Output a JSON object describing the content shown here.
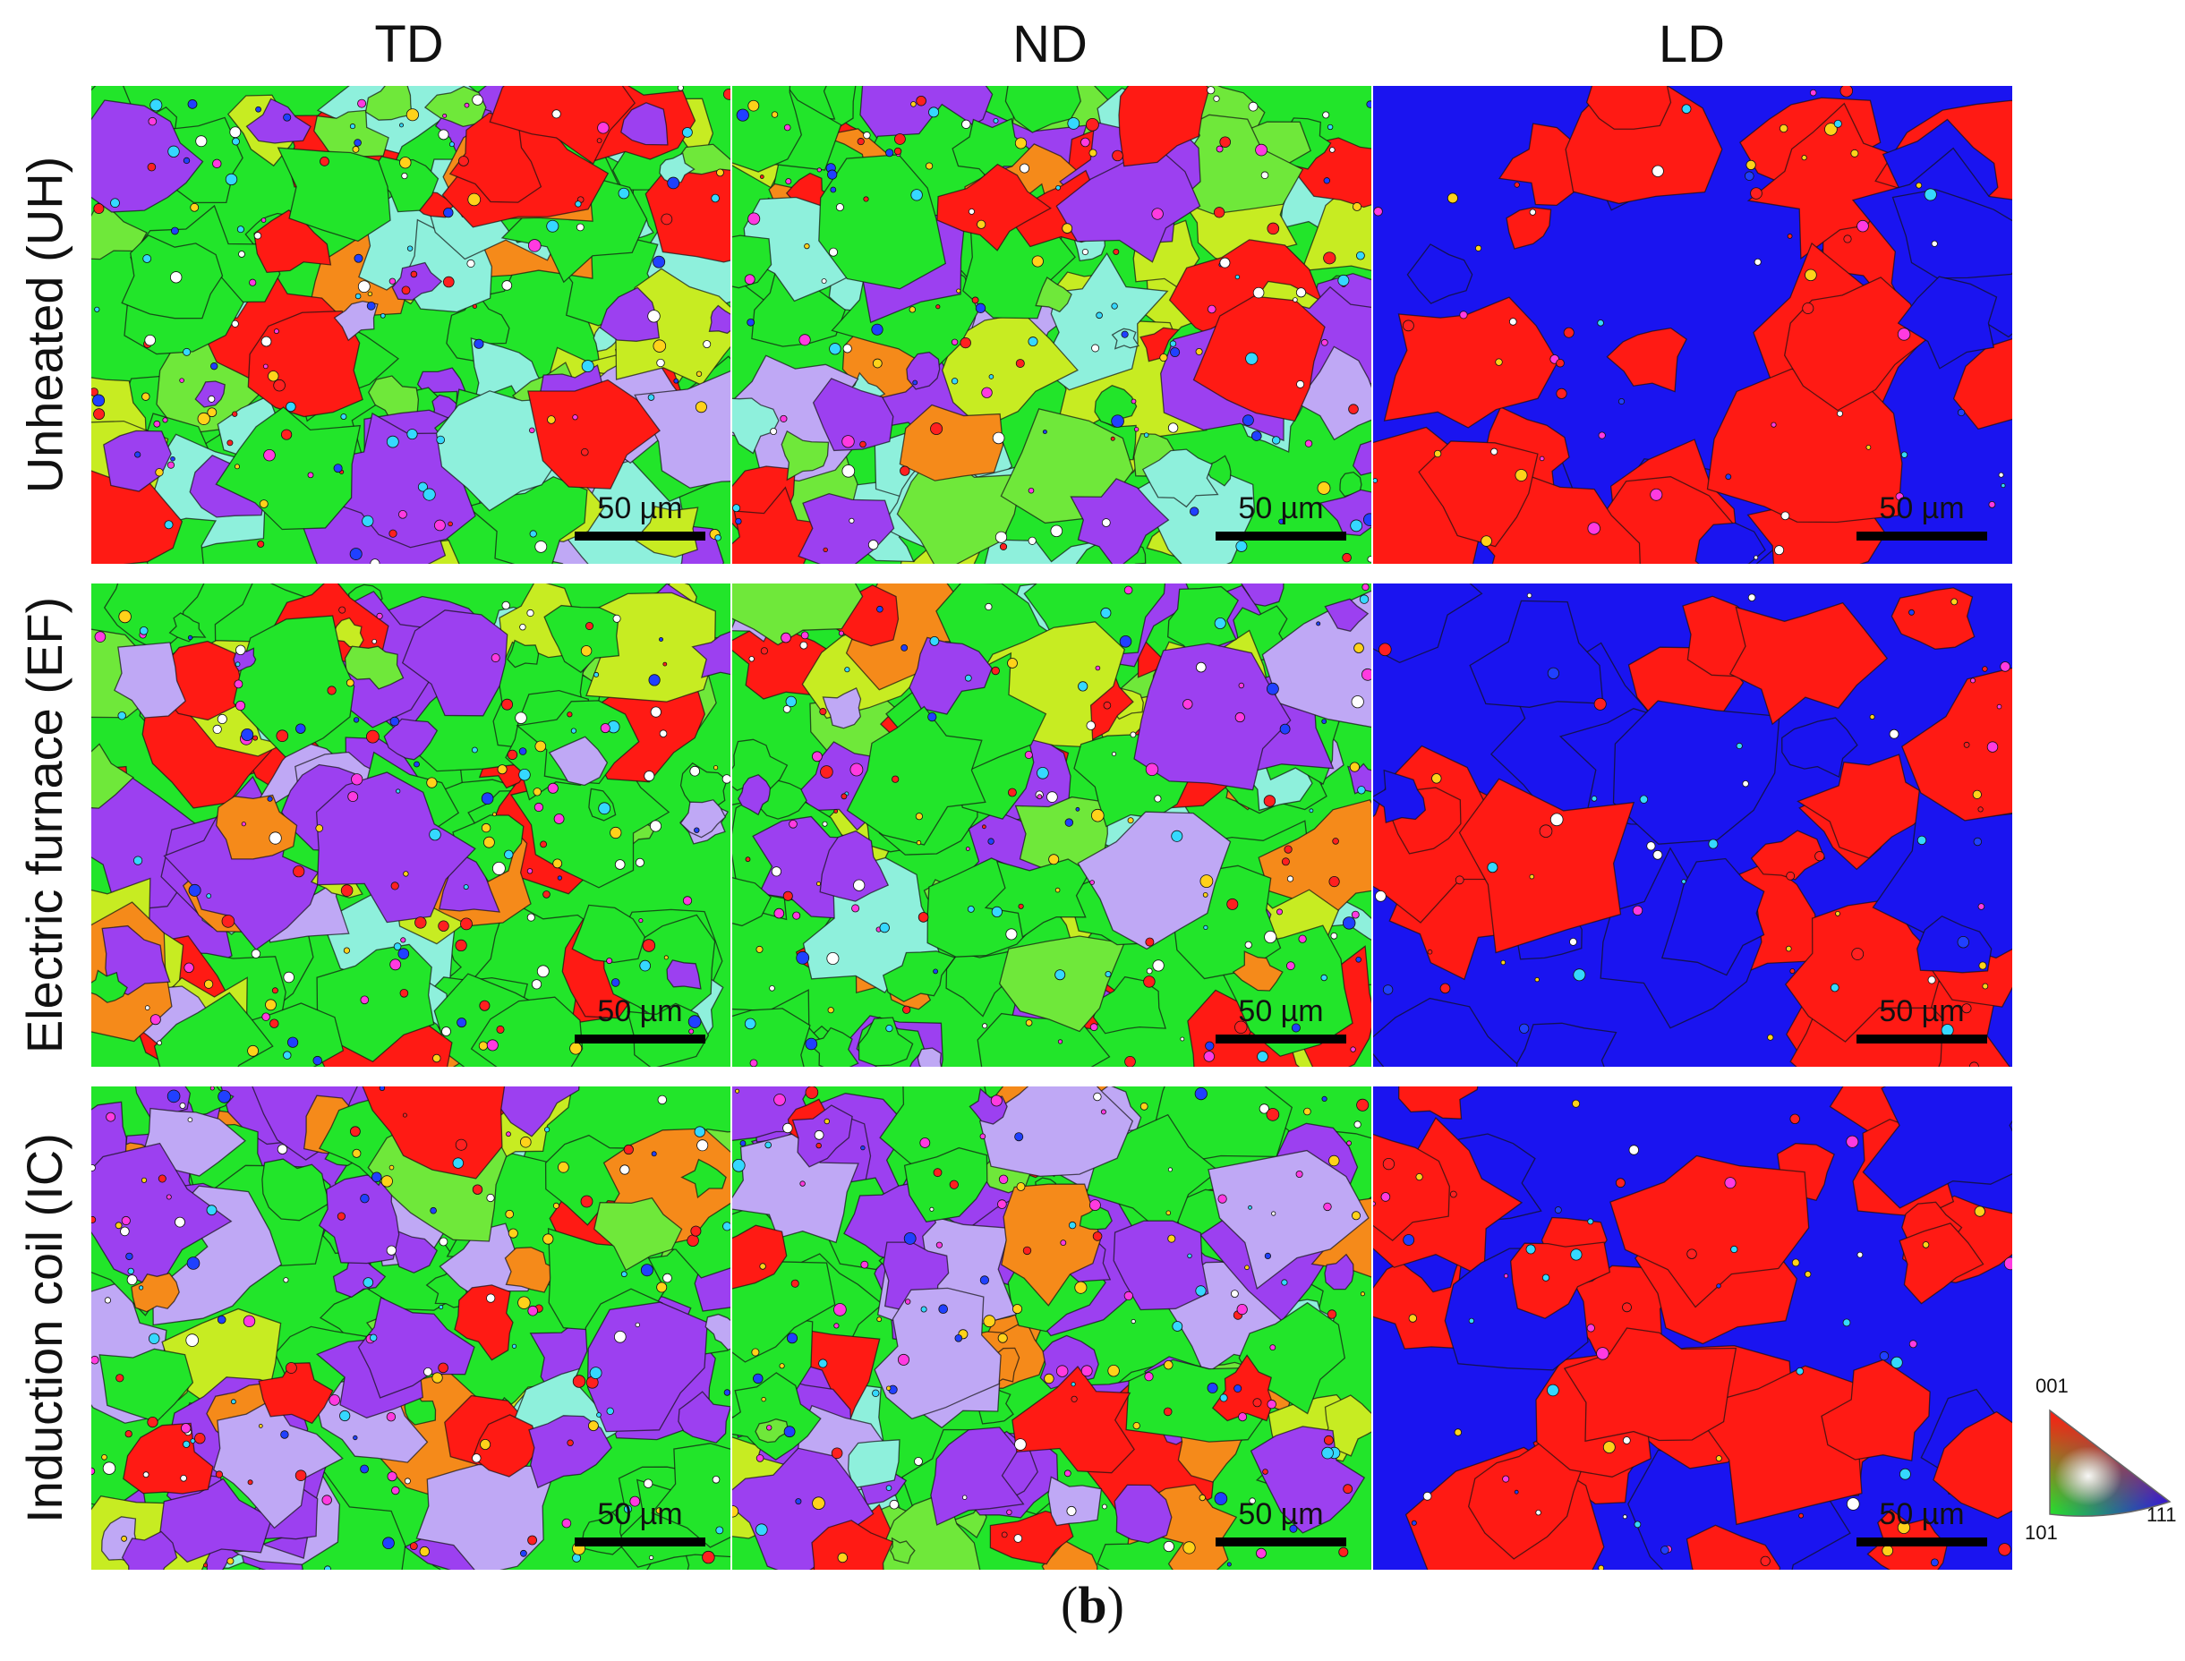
{
  "columns": [
    "TD",
    "ND",
    "LD"
  ],
  "rows": [
    {
      "label": "Unheated (UH)"
    },
    {
      "label": "Electric furnace (EF)"
    },
    {
      "label": "Induction coil (IC)"
    }
  ],
  "scale_bar": "50 µm",
  "caption": {
    "open": "(",
    "letter": "b",
    "close": ")"
  },
  "legend": {
    "top": "001",
    "bottom_left": "101",
    "bottom_right": "111"
  },
  "colors": {
    "ipf_red_001": "#ff1a14",
    "ipf_green_101": "#22e52a",
    "ipf_blue_111": "#1a14f0",
    "ipf_purple": "#9c40f0",
    "ipf_lavender": "#bfa8f5",
    "ipf_yellow": "#c7ec22",
    "ipf_cyan": "#8ef0dc",
    "grain_boundary": "#111111"
  }
}
